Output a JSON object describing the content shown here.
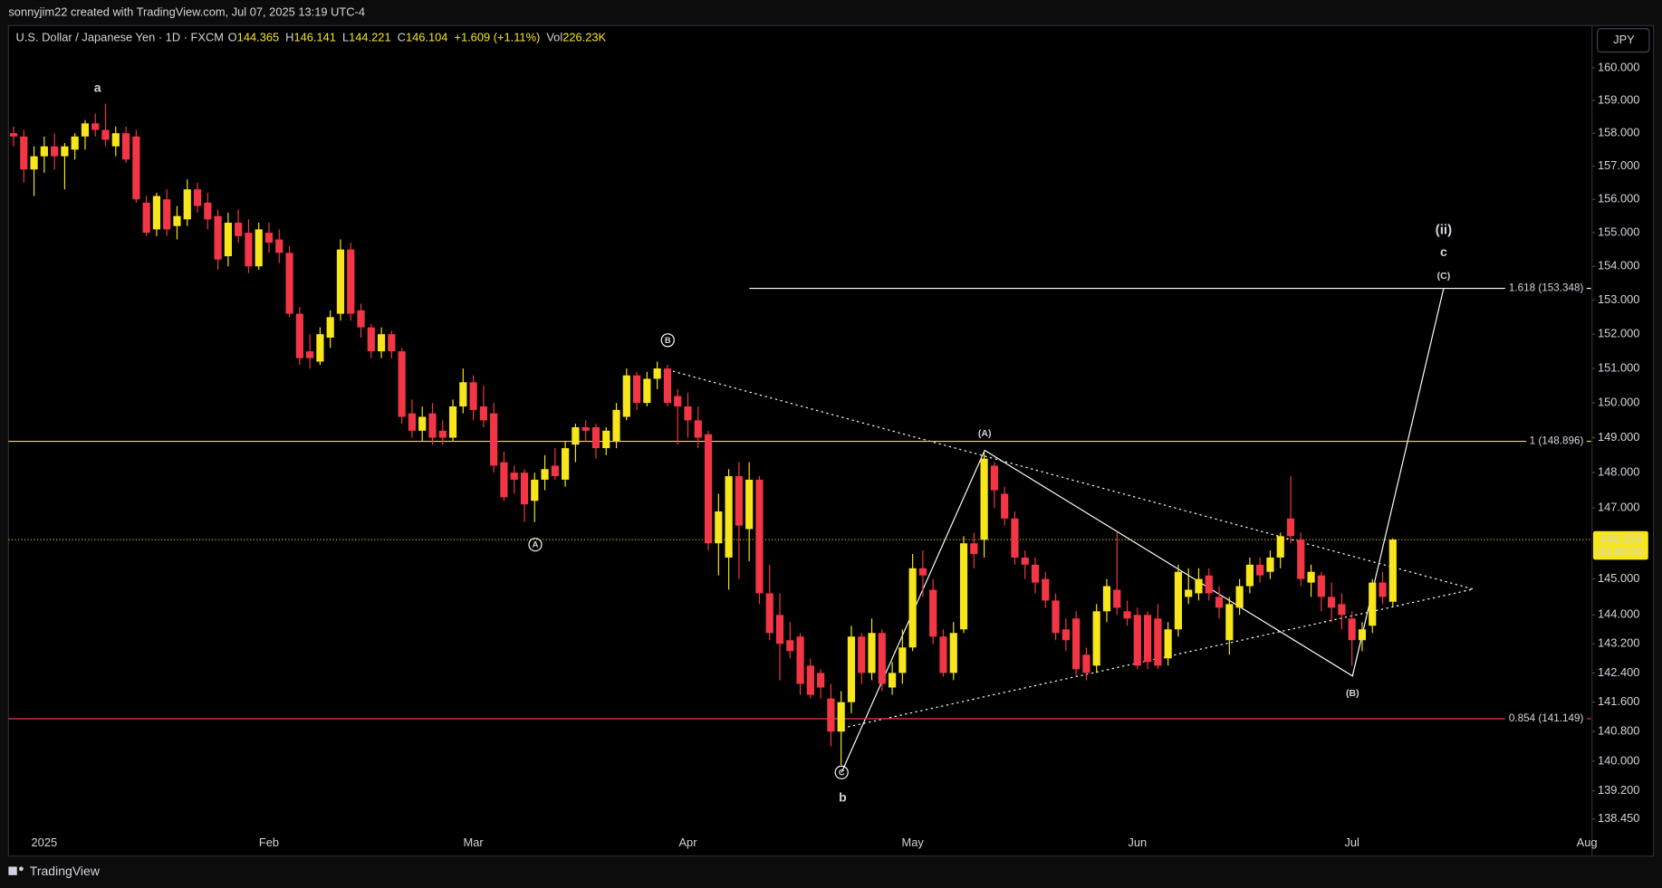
{
  "header": {
    "credit": "sonnyjim22 created with TradingView.com, Jul 07, 2025 13:19 UTC-4",
    "currency": "JPY",
    "footer": "TradingView"
  },
  "chart_data": {
    "type": "candlestick",
    "legend": {
      "symbol": "U.S. Dollar / Japanese Yen · 1D · FXCM",
      "items": [
        {
          "key": "O",
          "value": "144.365"
        },
        {
          "key": "H",
          "value": "146.141"
        },
        {
          "key": "L",
          "value": "144.221"
        },
        {
          "key": "C",
          "value": "146.104"
        },
        {
          "value": "+1.609 (+1.11%)"
        },
        {
          "key": "Vol",
          "value": "226.23K"
        }
      ]
    },
    "up_color": "#f7e61b",
    "down_color": "#f23645",
    "log_scale": true,
    "grid": false,
    "ylim": [
      137.52,
      161.31
    ],
    "yticks": [
      {
        "value": 160,
        "label": "160.000"
      },
      {
        "value": 159,
        "label": "159.000"
      },
      {
        "value": 158,
        "label": "158.000"
      },
      {
        "value": 157,
        "label": "157.000"
      },
      {
        "value": 156,
        "label": "156.000"
      },
      {
        "value": 155,
        "label": "155.000"
      },
      {
        "value": 154,
        "label": "154.000"
      },
      {
        "value": 153,
        "label": "153.000"
      },
      {
        "value": 152,
        "label": "152.000"
      },
      {
        "value": 151,
        "label": "151.000"
      },
      {
        "value": 150,
        "label": "150.000"
      },
      {
        "value": 149,
        "label": "149.000"
      },
      {
        "value": 148,
        "label": "148.000"
      },
      {
        "value": 147,
        "label": "147.000"
      },
      {
        "value": 145,
        "label": "145.000"
      },
      {
        "value": 144,
        "label": "144.000"
      },
      {
        "value": 143.2,
        "label": "143.200"
      },
      {
        "value": 142.4,
        "label": "142.400"
      },
      {
        "value": 141.6,
        "label": "141.600"
      },
      {
        "value": 140.8,
        "label": "140.800"
      },
      {
        "value": 140,
        "label": "140.000"
      },
      {
        "value": 139.2,
        "label": "139.200"
      },
      {
        "value": 138.45,
        "label": "138.450"
      }
    ],
    "categories": [
      null,
      null,
      null,
      "2025",
      null,
      null,
      null,
      null,
      null,
      null,
      null,
      null,
      null,
      null,
      null,
      null,
      null,
      null,
      null,
      null,
      null,
      null,
      null,
      null,
      null,
      "Feb",
      null,
      null,
      null,
      null,
      null,
      null,
      null,
      null,
      null,
      null,
      null,
      null,
      null,
      null,
      null,
      null,
      null,
      null,
      null,
      "Mar",
      null,
      null,
      null,
      null,
      null,
      null,
      null,
      null,
      null,
      null,
      null,
      null,
      null,
      null,
      null,
      null,
      null,
      null,
      null,
      null,
      "Apr",
      null,
      null,
      null,
      null,
      null,
      null,
      null,
      null,
      null,
      null,
      null,
      null,
      null,
      null,
      null,
      null,
      null,
      null,
      null,
      null,
      null,
      "May",
      null,
      null,
      null,
      null,
      null,
      null,
      null,
      null,
      null,
      null,
      null,
      null,
      null,
      null,
      null,
      null,
      null,
      null,
      null,
      null,
      null,
      "Jun",
      null,
      null,
      null,
      null,
      null,
      null,
      null,
      null,
      null,
      null,
      null,
      null,
      null,
      null,
      null,
      null,
      null,
      null,
      null,
      null,
      "Jul",
      null,
      null,
      null,
      null,
      null,
      null,
      null,
      null,
      null,
      null,
      null,
      null,
      null,
      null,
      null,
      null,
      null,
      null,
      null,
      null,
      null,
      null,
      "Aug"
    ],
    "open": [
      158.0,
      157.9,
      156.9,
      157.3,
      157.6,
      157.3,
      157.5,
      157.9,
      158.3,
      158.1,
      157.6,
      158.0,
      157.9,
      155.9,
      155.1,
      156.0,
      155.2,
      155.4,
      156.3,
      155.9,
      155.5,
      154.3,
      155.3,
      155.0,
      154.0,
      155.0,
      154.8,
      154.4,
      152.6,
      151.5,
      151.2,
      151.9,
      152.6,
      154.5,
      152.7,
      152.2,
      151.5,
      152.0,
      151.5,
      149.7,
      149.2,
      149.7,
      149.2,
      149.0,
      149.9,
      150.6,
      149.9,
      149.7,
      148.3,
      148.0,
      148.0,
      147.2,
      147.8,
      148.2,
      147.8,
      148.8,
      149.3,
      149.3,
      148.7,
      148.9,
      149.6,
      150.8,
      150.0,
      150.7,
      151.0,
      150.2,
      149.9,
      149.5,
      149.1,
      146.0,
      145.6,
      147.9,
      146.4,
      147.8,
      144.6,
      144.0,
      143.3,
      143.4,
      142.6,
      142.4,
      141.7,
      140.8,
      141.6,
      143.4,
      142.4,
      143.5,
      142.0,
      142.4,
      143.1,
      145.3,
      144.7,
      143.4,
      142.4,
      143.6,
      146.0,
      146.1,
      148.2,
      147.4,
      146.7,
      145.6,
      145.4,
      145.0,
      144.4,
      143.6,
      143.9,
      142.9,
      142.6,
      144.1,
      144.7,
      144.1,
      144.0,
      144.0,
      143.9,
      142.8,
      143.6,
      144.5,
      144.6,
      145.1,
      144.5,
      143.3,
      144.2,
      144.8,
      145.4,
      145.2,
      145.6,
      146.7,
      146.1,
      144.9,
      145.1,
      144.5,
      144.3,
      143.9,
      143.3,
      143.7,
      144.9,
      144.365,
      null,
      null,
      null,
      null,
      null,
      null,
      null,
      null,
      null,
      null,
      null,
      null,
      null,
      null,
      null,
      null,
      null,
      null,
      null
    ],
    "high": [
      158.2,
      158.1,
      157.6,
      157.9,
      158.0,
      157.7,
      158.0,
      158.4,
      158.6,
      158.9,
      158.2,
      158.2,
      158.1,
      156.1,
      156.2,
      156.3,
      155.8,
      156.6,
      156.5,
      156.2,
      155.7,
      155.6,
      155.7,
      155.4,
      155.3,
      155.3,
      155.1,
      154.6,
      152.8,
      152.0,
      152.2,
      152.7,
      154.8,
      154.7,
      152.9,
      152.3,
      152.2,
      152.1,
      151.6,
      150.1,
      149.9,
      150.0,
      149.5,
      150.1,
      151.0,
      150.8,
      150.5,
      150.0,
      148.6,
      148.2,
      148.1,
      148.0,
      148.5,
      148.7,
      148.9,
      149.4,
      149.5,
      149.4,
      149.3,
      150.0,
      151.0,
      150.9,
      150.9,
      151.2,
      151.1,
      150.4,
      150.3,
      149.9,
      149.2,
      147.4,
      148.1,
      148.3,
      148.3,
      147.9,
      145.4,
      144.6,
      143.8,
      143.5,
      142.8,
      142.5,
      142.1,
      141.9,
      143.7,
      143.5,
      143.9,
      143.6,
      142.7,
      143.6,
      145.7,
      145.8,
      145.0,
      143.6,
      143.8,
      146.2,
      146.3,
      148.6,
      148.3,
      147.6,
      146.9,
      145.8,
      145.6,
      145.2,
      144.6,
      143.9,
      144.1,
      143.1,
      144.3,
      145.0,
      146.3,
      144.4,
      144.2,
      144.1,
      144.3,
      143.8,
      145.4,
      145.3,
      145.3,
      145.3,
      144.8,
      144.5,
      145.0,
      145.6,
      145.6,
      145.8,
      146.3,
      147.9,
      146.3,
      145.4,
      145.2,
      144.9,
      144.6,
      144.1,
      143.8,
      145.0,
      145.2,
      146.141,
      null,
      null,
      null,
      null,
      null,
      null,
      null,
      null,
      null,
      null,
      null,
      null,
      null,
      null,
      null,
      null,
      null,
      null,
      null
    ],
    "low": [
      157.6,
      156.5,
      156.1,
      156.8,
      156.9,
      156.3,
      157.2,
      157.5,
      157.9,
      157.6,
      157.3,
      157.1,
      155.9,
      154.9,
      154.9,
      154.9,
      154.8,
      155.2,
      155.6,
      155.1,
      153.9,
      154.0,
      154.7,
      153.8,
      153.9,
      154.4,
      154.1,
      152.5,
      151.1,
      151.0,
      151.1,
      151.6,
      152.4,
      152.4,
      151.9,
      151.3,
      151.3,
      151.3,
      149.4,
      149.0,
      148.9,
      148.8,
      148.8,
      148.9,
      149.7,
      149.5,
      149.3,
      148.0,
      147.2,
      147.4,
      146.6,
      146.6,
      147.5,
      147.8,
      147.6,
      148.3,
      148.9,
      148.4,
      148.5,
      148.7,
      149.5,
      149.8,
      149.9,
      150.4,
      149.9,
      148.8,
      149.0,
      148.7,
      145.8,
      145.1,
      144.7,
      145.0,
      145.5,
      144.3,
      143.3,
      142.2,
      142.8,
      141.8,
      141.7,
      141.7,
      140.4,
      139.9,
      141.3,
      142.1,
      142.2,
      141.9,
      141.8,
      142.1,
      143.0,
      144.5,
      143.2,
      142.3,
      142.2,
      143.5,
      145.3,
      145.6,
      147.0,
      146.5,
      145.4,
      145.0,
      144.6,
      144.2,
      143.3,
      143.0,
      142.3,
      142.2,
      142.4,
      143.8,
      144.0,
      143.7,
      142.5,
      142.5,
      142.5,
      142.6,
      143.4,
      144.3,
      144.4,
      144.4,
      143.9,
      142.9,
      144.0,
      144.6,
      144.9,
      145.0,
      145.3,
      146.0,
      144.8,
      144.5,
      144.1,
      143.8,
      143.6,
      142.6,
      143.0,
      143.5,
      144.3,
      144.221,
      null,
      null,
      null,
      null,
      null,
      null,
      null,
      null,
      null,
      null,
      null,
      null,
      null,
      null,
      null,
      null,
      null,
      null,
      null
    ],
    "close": [
      157.9,
      156.9,
      157.3,
      157.6,
      157.3,
      157.6,
      157.9,
      158.3,
      158.1,
      157.8,
      158.0,
      157.2,
      156.0,
      155.0,
      156.1,
      155.1,
      155.5,
      156.3,
      155.8,
      155.4,
      154.2,
      155.3,
      154.9,
      154.0,
      155.1,
      154.7,
      154.4,
      152.6,
      151.3,
      151.3,
      152.0,
      152.5,
      154.5,
      152.6,
      152.2,
      151.5,
      152.0,
      151.5,
      149.6,
      149.2,
      149.6,
      149.0,
      149.0,
      149.9,
      150.6,
      149.8,
      149.5,
      148.2,
      147.3,
      147.8,
      147.1,
      147.8,
      148.1,
      147.9,
      148.7,
      149.3,
      149.2,
      148.7,
      149.2,
      149.8,
      150.8,
      150.0,
      150.7,
      151.0,
      150.0,
      149.9,
      149.5,
      149.0,
      146.0,
      146.9,
      147.9,
      146.5,
      147.8,
      144.6,
      143.5,
      143.2,
      143.0,
      142.1,
      141.8,
      142.0,
      140.8,
      141.6,
      143.4,
      142.4,
      143.5,
      142.1,
      142.4,
      143.1,
      145.3,
      145.1,
      143.4,
      142.4,
      143.5,
      146.0,
      145.7,
      148.4,
      147.5,
      146.7,
      145.6,
      145.4,
      144.9,
      144.4,
      143.5,
      143.3,
      142.5,
      142.4,
      144.1,
      144.8,
      144.2,
      143.9,
      142.6,
      142.7,
      142.6,
      143.6,
      145.2,
      144.7,
      145.0,
      144.6,
      144.2,
      144.3,
      144.8,
      145.4,
      145.1,
      145.6,
      146.2,
      146.2,
      145.0,
      145.2,
      144.5,
      144.2,
      144.0,
      143.3,
      143.6,
      144.9,
      144.5,
      146.104,
      null,
      null,
      null,
      null,
      null,
      null,
      null,
      null,
      null,
      null,
      null,
      null,
      null,
      null,
      null,
      null,
      null,
      null,
      null
    ],
    "levels": [
      {
        "value": 153.348,
        "label": "1.618 (153.348)",
        "color": "#ffffff"
      },
      {
        "value": 148.896,
        "label": "1 (148.896)",
        "color": "#f7e61b"
      },
      {
        "value": 141.149,
        "label": "0.854 (141.149)",
        "color": "#f23645"
      }
    ],
    "last_price": {
      "value": 146.104,
      "countdown": "03:40:50"
    },
    "annotations": [
      {
        "text": "a"
      },
      {
        "text": "A",
        "circled": true
      },
      {
        "text": "B",
        "circled": true
      },
      {
        "text": "C",
        "circled": true
      },
      {
        "text": "b"
      },
      {
        "text": "(A)"
      },
      {
        "text": "(B)"
      },
      {
        "text": "(C)"
      },
      {
        "text": "c"
      },
      {
        "text": "(ii)"
      }
    ]
  }
}
